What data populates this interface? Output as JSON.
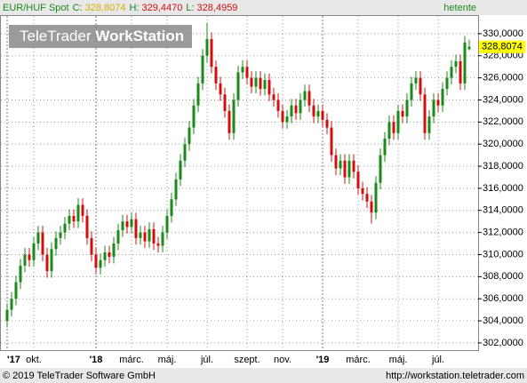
{
  "chart_data": {
    "type": "candlestick",
    "title": "EUR/HUF Spot",
    "summary": [
      {
        "name": "C:",
        "value": "328,8074",
        "color": "#d4b000"
      },
      {
        "name": "H:",
        "value": "329,4470",
        "color": "#d01010"
      },
      {
        "name": "L:",
        "value": "328,4959",
        "color": "#d01010"
      }
    ],
    "period": "hetente",
    "logo": [
      "TeleTrader",
      "WorkStation"
    ],
    "last_label": "328,8074",
    "footer": [
      "© 2019 TeleTrader Software GmbH",
      "http://workstation.teletrader.com"
    ],
    "up_color": "#1a8a1a",
    "down_color": "#d01010",
    "categories": [
      "'17",
      null,
      null,
      null,
      null,
      null,
      "okt.",
      null,
      null,
      null,
      null,
      null,
      null,
      null,
      null,
      null,
      null,
      null,
      null,
      null,
      "'18",
      null,
      null,
      null,
      null,
      null,
      null,
      null,
      "márc.",
      null,
      null,
      null,
      null,
      null,
      null,
      null,
      "máj.",
      null,
      null,
      null,
      null,
      null,
      null,
      null,
      null,
      "júl.",
      null,
      null,
      null,
      null,
      null,
      null,
      null,
      null,
      "szept.",
      null,
      null,
      null,
      null,
      null,
      null,
      null,
      "nov.",
      null,
      null,
      null,
      null,
      null,
      null,
      null,
      null,
      "'19",
      null,
      null,
      null,
      null,
      null,
      null,
      null,
      "márc.",
      null,
      null,
      null,
      null,
      null,
      null,
      null,
      null,
      "máj.",
      null,
      null,
      null,
      null,
      null,
      null,
      null,
      null,
      "júl.",
      null,
      null,
      null,
      null,
      null,
      null,
      null
    ],
    "open": [
      304.0,
      305.0,
      306.0,
      307.5,
      309.0,
      310.0,
      309.5,
      311.0,
      312.0,
      310.0,
      308.5,
      310.5,
      311.5,
      312.0,
      312.8,
      313.5,
      313.0,
      314.5,
      313.5,
      311.5,
      310.0,
      308.8,
      309.5,
      310.2,
      309.8,
      311.0,
      312.2,
      313.0,
      312.5,
      313.2,
      311.5,
      312.0,
      311.2,
      312.3,
      311.0,
      310.8,
      312.0,
      313.5,
      315.0,
      316.8,
      318.5,
      320.0,
      321.5,
      323.5,
      325.5,
      328.0,
      329.5,
      327.0,
      325.5,
      324.5,
      323.0,
      321.0,
      324.0,
      326.5,
      327.0,
      326.0,
      325.2,
      326.0,
      325.0,
      325.8,
      324.5,
      324.0,
      323.0,
      322.0,
      322.5,
      323.5,
      322.8,
      324.0,
      324.8,
      323.5,
      322.5,
      323.0,
      322.2,
      321.5,
      319.0,
      317.8,
      318.5,
      317.0,
      318.5,
      317.5,
      316.0,
      315.5,
      314.8,
      313.8,
      316.5,
      319.0,
      320.5,
      322.0,
      321.0,
      323.0,
      322.5,
      324.0,
      325.5,
      326.0,
      324.5,
      321.0,
      322.5,
      324.0,
      323.5,
      325.0,
      326.0,
      327.0,
      327.5,
      325.5,
      328.6
    ],
    "high": [
      305.6,
      306.6,
      308.1,
      309.6,
      310.6,
      310.6,
      311.6,
      312.6,
      312.6,
      310.6,
      311.1,
      312.1,
      312.6,
      313.4,
      314.1,
      314.1,
      315.1,
      315.1,
      314.1,
      312.1,
      310.6,
      310.1,
      310.8,
      310.8,
      311.6,
      312.8,
      313.6,
      313.6,
      313.8,
      313.8,
      312.6,
      312.6,
      312.9,
      312.9,
      311.6,
      312.6,
      314.1,
      315.6,
      317.4,
      319.1,
      320.6,
      322.1,
      324.1,
      326.1,
      328.6,
      331.0,
      330.1,
      327.6,
      326.1,
      325.1,
      323.6,
      324.6,
      327.1,
      327.6,
      327.6,
      326.6,
      326.6,
      326.6,
      326.4,
      326.4,
      325.1,
      324.6,
      323.6,
      323.1,
      324.1,
      324.1,
      324.6,
      325.4,
      325.4,
      324.1,
      323.6,
      323.6,
      322.8,
      322.1,
      319.6,
      319.1,
      319.1,
      319.1,
      319.1,
      318.1,
      316.6,
      316.1,
      315.4,
      317.1,
      319.6,
      321.1,
      322.6,
      322.6,
      323.6,
      323.6,
      324.6,
      326.1,
      326.6,
      326.6,
      325.1,
      323.1,
      324.6,
      324.6,
      325.6,
      326.6,
      327.6,
      328.1,
      328.1,
      329.8,
      329.447
    ],
    "low": [
      303.4,
      304.4,
      305.4,
      306.9,
      308.4,
      308.9,
      308.9,
      310.4,
      309.4,
      307.9,
      307.9,
      309.9,
      310.9,
      311.4,
      312.2,
      312.4,
      312.4,
      312.9,
      310.9,
      309.4,
      308.2,
      308.2,
      308.9,
      309.2,
      309.2,
      310.4,
      311.6,
      311.9,
      311.9,
      310.9,
      310.9,
      310.6,
      310.6,
      310.4,
      310.2,
      310.2,
      311.4,
      312.9,
      314.4,
      316.2,
      317.9,
      319.4,
      320.9,
      322.9,
      324.9,
      327.4,
      326.4,
      324.9,
      323.9,
      322.4,
      320.4,
      320.4,
      323.4,
      325.9,
      325.4,
      324.6,
      324.6,
      324.4,
      324.4,
      323.9,
      323.4,
      322.4,
      321.4,
      321.4,
      321.9,
      322.2,
      322.2,
      323.4,
      322.9,
      321.9,
      321.9,
      321.6,
      320.9,
      318.4,
      317.2,
      317.2,
      316.4,
      316.4,
      316.9,
      315.4,
      314.9,
      314.2,
      312.8,
      313.2,
      315.9,
      318.4,
      319.9,
      320.4,
      320.4,
      321.9,
      321.9,
      323.4,
      324.9,
      323.9,
      320.4,
      320.4,
      321.9,
      322.9,
      322.9,
      324.4,
      325.4,
      326.4,
      324.9,
      324.9,
      328.4959
    ],
    "close": [
      305.0,
      306.0,
      307.5,
      309.0,
      310.0,
      309.5,
      311.0,
      312.0,
      310.0,
      308.5,
      310.5,
      311.5,
      312.0,
      312.8,
      313.5,
      313.0,
      314.5,
      313.5,
      311.5,
      310.0,
      308.8,
      309.5,
      310.2,
      309.8,
      311.0,
      312.2,
      313.0,
      312.5,
      313.2,
      311.5,
      312.0,
      311.2,
      312.3,
      311.0,
      310.8,
      312.0,
      313.5,
      315.0,
      316.8,
      318.5,
      320.0,
      321.5,
      323.5,
      325.5,
      328.0,
      329.5,
      327.0,
      325.5,
      324.5,
      323.0,
      321.0,
      324.0,
      326.5,
      327.0,
      326.0,
      325.2,
      326.0,
      325.0,
      325.8,
      324.5,
      324.0,
      323.0,
      322.0,
      322.5,
      323.5,
      322.8,
      324.0,
      324.8,
      323.5,
      322.5,
      323.0,
      322.2,
      321.5,
      319.0,
      317.8,
      318.5,
      317.0,
      318.5,
      317.5,
      316.0,
      315.5,
      314.8,
      313.8,
      316.5,
      319.0,
      320.5,
      322.0,
      321.0,
      323.0,
      322.5,
      324.0,
      325.5,
      326.0,
      324.5,
      321.0,
      322.5,
      324.0,
      323.5,
      325.0,
      326.0,
      327.0,
      327.5,
      325.5,
      329.2,
      328.8074
    ],
    "ylim": [
      301.35,
      331.6
    ],
    "yticks": [
      {
        "value": 302,
        "label": "302,0000"
      },
      {
        "value": 304,
        "label": "304,0000"
      },
      {
        "value": 306,
        "label": "306,0000"
      },
      {
        "value": 308,
        "label": "308,0000"
      },
      {
        "value": 310,
        "label": "310,0000"
      },
      {
        "value": 312,
        "label": "312,0000"
      },
      {
        "value": 314,
        "label": "314,0000"
      },
      {
        "value": 316,
        "label": "316,0000"
      },
      {
        "value": 318,
        "label": "318,0000"
      },
      {
        "value": 320,
        "label": "320,0000"
      },
      {
        "value": 322,
        "label": "322,0000"
      },
      {
        "value": 324,
        "label": "324,0000"
      },
      {
        "value": 326,
        "label": "326,0000"
      },
      {
        "value": 328,
        "label": "328,0000"
      },
      {
        "value": 330,
        "label": "330,0000"
      }
    ],
    "grid": true
  }
}
